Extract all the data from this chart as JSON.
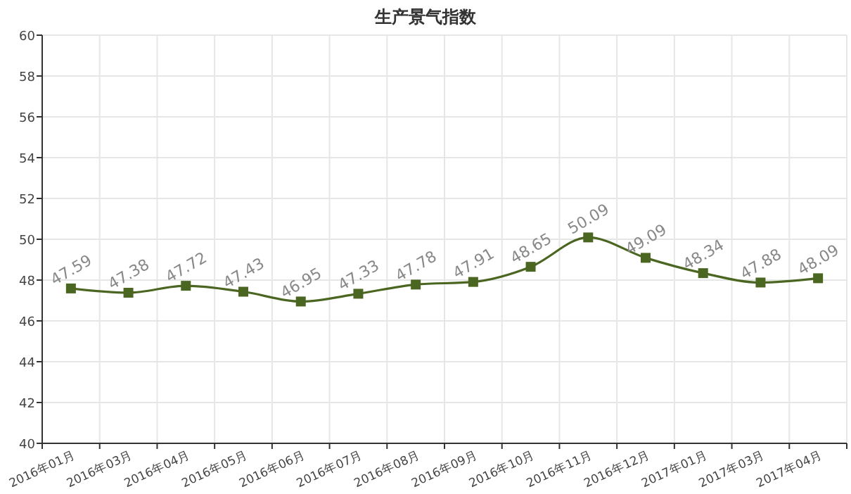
{
  "chart_data": {
    "type": "line",
    "title": "生产景气指数",
    "categories": [
      "2016年01月",
      "2016年03月",
      "2016年04月",
      "2016年05月",
      "2016年06月",
      "2016年07月",
      "2016年08月",
      "2016年09月",
      "2016年10月",
      "2016年11月",
      "2016年12月",
      "2017年01月",
      "2017年03月",
      "2017年04月"
    ],
    "values": [
      47.59,
      47.38,
      47.72,
      47.43,
      46.95,
      47.33,
      47.78,
      47.91,
      48.65,
      50.09,
      49.09,
      48.34,
      47.88,
      48.09
    ],
    "color": "#4a6621",
    "ylim": [
      40,
      60
    ],
    "yticks": [
      40,
      42,
      44,
      46,
      48,
      50,
      52,
      54,
      56,
      58,
      60
    ],
    "grid": true,
    "marker": "square",
    "line_style": "solid",
    "data_labels": true
  }
}
